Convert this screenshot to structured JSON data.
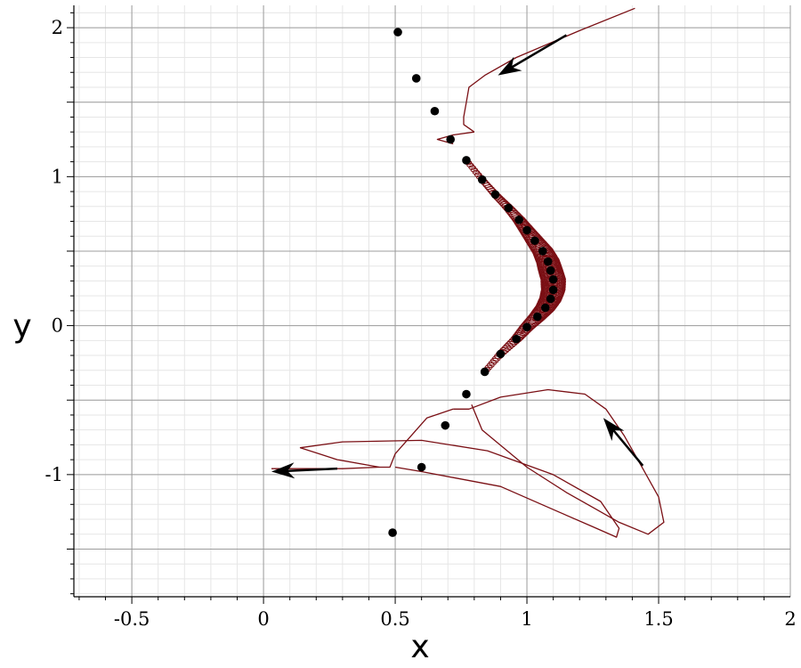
{
  "chart_data": {
    "type": "scatter",
    "xlabel": "x",
    "ylabel": "y",
    "xlim": [
      -0.72,
      2.0
    ],
    "ylim": [
      -1.82,
      2.15
    ],
    "grid": true,
    "x_ticks": [
      -0.5,
      0,
      0.5,
      1,
      1.5,
      2
    ],
    "x_tick_labels": [
      "-0.5",
      "0",
      "0.5",
      "1",
      "1.5",
      "2"
    ],
    "y_ticks": [
      -1,
      0,
      1,
      2
    ],
    "y_tick_labels": [
      "-1",
      "0",
      "1",
      "2"
    ],
    "colors": {
      "trajectory": "#7a0f14",
      "points": "#000000",
      "arrows": "#000000",
      "grid_major": "#9c9c9c",
      "grid_minor": "#e6e6e6"
    },
    "points": [
      {
        "x": 0.51,
        "y": 1.97
      },
      {
        "x": 0.58,
        "y": 1.66
      },
      {
        "x": 0.65,
        "y": 1.44
      },
      {
        "x": 0.71,
        "y": 1.25
      },
      {
        "x": 0.77,
        "y": 1.11
      },
      {
        "x": 0.83,
        "y": 0.98
      },
      {
        "x": 0.88,
        "y": 0.88
      },
      {
        "x": 0.93,
        "y": 0.79
      },
      {
        "x": 0.97,
        "y": 0.71
      },
      {
        "x": 1.0,
        "y": 0.64
      },
      {
        "x": 1.03,
        "y": 0.57
      },
      {
        "x": 1.06,
        "y": 0.5
      },
      {
        "x": 1.08,
        "y": 0.43
      },
      {
        "x": 1.09,
        "y": 0.37
      },
      {
        "x": 1.1,
        "y": 0.31
      },
      {
        "x": 1.1,
        "y": 0.24
      },
      {
        "x": 1.09,
        "y": 0.18
      },
      {
        "x": 1.07,
        "y": 0.12
      },
      {
        "x": 1.04,
        "y": 0.06
      },
      {
        "x": 1.0,
        "y": -0.01
      },
      {
        "x": 0.96,
        "y": -0.09
      },
      {
        "x": 0.9,
        "y": -0.19
      },
      {
        "x": 0.84,
        "y": -0.31
      },
      {
        "x": 0.77,
        "y": -0.46
      },
      {
        "x": 0.69,
        "y": -0.67
      },
      {
        "x": 0.6,
        "y": -0.95
      },
      {
        "x": 0.49,
        "y": -1.39
      }
    ],
    "trajectories": [
      {
        "segments": [
          [
            [
              1.41,
              2.13
            ],
            [
              1.2,
              1.98
            ],
            [
              0.96,
              1.8
            ],
            [
              0.84,
              1.68
            ],
            [
              0.78,
              1.6
            ],
            [
              0.77,
              1.5
            ],
            [
              0.76,
              1.4
            ],
            [
              0.76,
              1.35
            ],
            [
              0.8,
              1.3
            ]
          ]
        ]
      },
      {
        "segments": [
          [
            [
              0.8,
              1.3
            ],
            [
              0.72,
              1.28
            ],
            [
              0.66,
              1.25
            ],
            [
              0.72,
              1.22
            ]
          ]
        ]
      },
      {
        "segments": [
          [
            [
              0.79,
              -0.53
            ],
            [
              0.83,
              -0.7
            ],
            [
              1.0,
              -0.95
            ],
            [
              1.15,
              -1.12
            ],
            [
              1.26,
              -1.23
            ],
            [
              1.35,
              -1.32
            ],
            [
              1.46,
              -1.4
            ],
            [
              1.52,
              -1.32
            ],
            [
              1.5,
              -1.15
            ],
            [
              1.44,
              -0.96
            ],
            [
              1.37,
              -0.74
            ],
            [
              1.3,
              -0.56
            ],
            [
              1.22,
              -0.46
            ],
            [
              1.08,
              -0.43
            ],
            [
              0.9,
              -0.48
            ],
            [
              0.78,
              -0.56
            ],
            [
              0.72,
              -0.56
            ]
          ]
        ]
      },
      {
        "segments": [
          [
            [
              0.72,
              -0.56
            ],
            [
              0.62,
              -0.62
            ],
            [
              0.56,
              -0.74
            ],
            [
              0.5,
              -0.86
            ],
            [
              0.48,
              -0.95
            ],
            [
              0.44,
              -0.95
            ],
            [
              0.3,
              -0.96
            ],
            [
              0.18,
              -0.96
            ],
            [
              0.03,
              -0.96
            ]
          ]
        ]
      },
      {
        "segments": [
          [
            [
              0.44,
              -0.95
            ],
            [
              0.28,
              -0.9
            ],
            [
              0.14,
              -0.82
            ],
            [
              0.3,
              -0.78
            ],
            [
              0.6,
              -0.77
            ],
            [
              0.85,
              -0.84
            ],
            [
              1.1,
              -1.0
            ],
            [
              1.28,
              -1.18
            ],
            [
              1.35,
              -1.36
            ],
            [
              1.34,
              -1.42
            ],
            [
              1.25,
              -1.35
            ],
            [
              1.12,
              -1.25
            ],
            [
              0.9,
              -1.08
            ],
            [
              0.72,
              -1.02
            ],
            [
              0.6,
              -0.98
            ],
            [
              0.5,
              -0.95
            ]
          ]
        ]
      }
    ],
    "arrows": [
      {
        "from": [
          1.15,
          1.95
        ],
        "to": [
          0.89,
          1.68
        ]
      },
      {
        "from": [
          1.44,
          -0.94
        ],
        "to": [
          1.29,
          -0.62
        ]
      },
      {
        "from": [
          0.28,
          -0.96
        ],
        "to": [
          0.03,
          -0.98
        ]
      }
    ]
  }
}
